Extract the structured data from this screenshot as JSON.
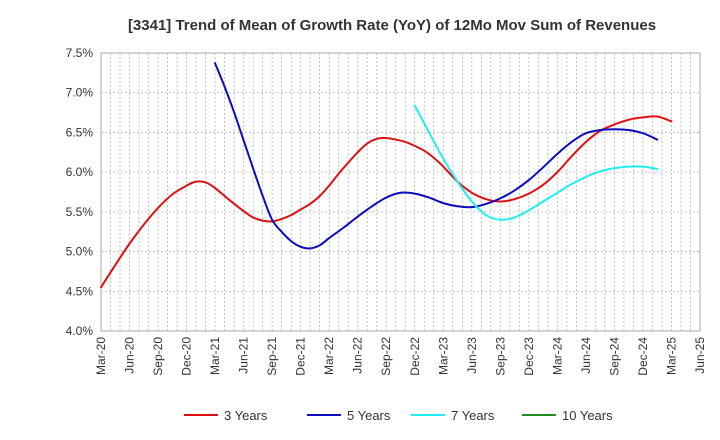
{
  "chart_data": {
    "type": "line",
    "title": "[3341]  Trend of Mean of Growth Rate (YoY) of 12Mo Mov Sum of Revenues",
    "xlabel": "",
    "ylabel": "",
    "ylim": [
      4.0,
      7.5
    ],
    "yticks": [
      "4.0%",
      "4.5%",
      "5.0%",
      "5.5%",
      "6.0%",
      "6.5%",
      "7.0%",
      "7.5%"
    ],
    "x_tick_labels": [
      "Mar-20",
      "Jun-20",
      "Sep-20",
      "Dec-20",
      "Mar-21",
      "Jun-21",
      "Sep-21",
      "Dec-21",
      "Mar-22",
      "Jun-22",
      "Sep-22",
      "Dec-22",
      "Mar-23",
      "Jun-23",
      "Sep-23",
      "Dec-23",
      "Mar-24",
      "Jun-24",
      "Sep-24",
      "Dec-24",
      "Mar-25",
      "Jun-25"
    ],
    "grid": true,
    "legend_position": "bottom",
    "series": [
      {
        "name": "3 Years",
        "color": "#dd1111",
        "points": [
          [
            0,
            4.55
          ],
          [
            0.5,
            4.83
          ],
          [
            1,
            5.1
          ],
          [
            1.5,
            5.34
          ],
          [
            2,
            5.55
          ],
          [
            2.5,
            5.72
          ],
          [
            3,
            5.83
          ],
          [
            3.33,
            5.88
          ],
          [
            3.67,
            5.87
          ],
          [
            4,
            5.8
          ],
          [
            4.5,
            5.65
          ],
          [
            5,
            5.51
          ],
          [
            5.33,
            5.43
          ],
          [
            5.67,
            5.39
          ],
          [
            6,
            5.38
          ],
          [
            6.33,
            5.41
          ],
          [
            6.67,
            5.46
          ],
          [
            7,
            5.53
          ],
          [
            7.33,
            5.6
          ],
          [
            7.67,
            5.7
          ],
          [
            8,
            5.83
          ],
          [
            8.33,
            5.98
          ],
          [
            8.67,
            6.12
          ],
          [
            9,
            6.25
          ],
          [
            9.33,
            6.36
          ],
          [
            9.67,
            6.42
          ],
          [
            10,
            6.43
          ],
          [
            10.33,
            6.41
          ],
          [
            10.67,
            6.38
          ],
          [
            11,
            6.33
          ],
          [
            11.33,
            6.27
          ],
          [
            11.67,
            6.18
          ],
          [
            12,
            6.07
          ],
          [
            12.5,
            5.88
          ],
          [
            13,
            5.74
          ],
          [
            13.5,
            5.66
          ],
          [
            14,
            5.63
          ],
          [
            14.5,
            5.66
          ],
          [
            15,
            5.73
          ],
          [
            15.5,
            5.84
          ],
          [
            16,
            6.0
          ],
          [
            16.5,
            6.2
          ],
          [
            17,
            6.38
          ],
          [
            17.5,
            6.52
          ],
          [
            18,
            6.6
          ],
          [
            18.5,
            6.66
          ],
          [
            19,
            6.69
          ],
          [
            19.5,
            6.7
          ],
          [
            20,
            6.64
          ]
        ]
      },
      {
        "name": "5 Years",
        "color": "#0b0bbf",
        "points": [
          [
            4,
            7.37
          ],
          [
            4.33,
            7.08
          ],
          [
            4.67,
            6.75
          ],
          [
            5,
            6.4
          ],
          [
            5.33,
            6.05
          ],
          [
            5.67,
            5.7
          ],
          [
            6,
            5.4
          ],
          [
            6.33,
            5.25
          ],
          [
            6.67,
            5.13
          ],
          [
            7,
            5.06
          ],
          [
            7.33,
            5.04
          ],
          [
            7.67,
            5.08
          ],
          [
            8,
            5.17
          ],
          [
            8.5,
            5.3
          ],
          [
            9,
            5.44
          ],
          [
            9.5,
            5.57
          ],
          [
            10,
            5.68
          ],
          [
            10.5,
            5.74
          ],
          [
            11,
            5.73
          ],
          [
            11.5,
            5.68
          ],
          [
            12,
            5.61
          ],
          [
            12.5,
            5.57
          ],
          [
            13,
            5.56
          ],
          [
            13.5,
            5.6
          ],
          [
            14,
            5.67
          ],
          [
            14.5,
            5.77
          ],
          [
            15,
            5.9
          ],
          [
            15.5,
            6.06
          ],
          [
            16,
            6.23
          ],
          [
            16.5,
            6.38
          ],
          [
            17,
            6.49
          ],
          [
            17.5,
            6.53
          ],
          [
            18,
            6.54
          ],
          [
            18.5,
            6.53
          ],
          [
            19,
            6.49
          ],
          [
            19.5,
            6.41
          ]
        ]
      },
      {
        "name": "7 Years",
        "color": "#22eeee",
        "points": [
          [
            11,
            6.84
          ],
          [
            11.5,
            6.5
          ],
          [
            12,
            6.17
          ],
          [
            12.5,
            5.88
          ],
          [
            13,
            5.63
          ],
          [
            13.5,
            5.46
          ],
          [
            14,
            5.4
          ],
          [
            14.5,
            5.43
          ],
          [
            15,
            5.52
          ],
          [
            15.5,
            5.63
          ],
          [
            16,
            5.74
          ],
          [
            16.5,
            5.85
          ],
          [
            17,
            5.94
          ],
          [
            17.5,
            6.01
          ],
          [
            18,
            6.05
          ],
          [
            18.5,
            6.07
          ],
          [
            19,
            6.07
          ],
          [
            19.5,
            6.04
          ]
        ]
      },
      {
        "name": "10 Years",
        "color": "#228b22",
        "points": []
      }
    ]
  }
}
